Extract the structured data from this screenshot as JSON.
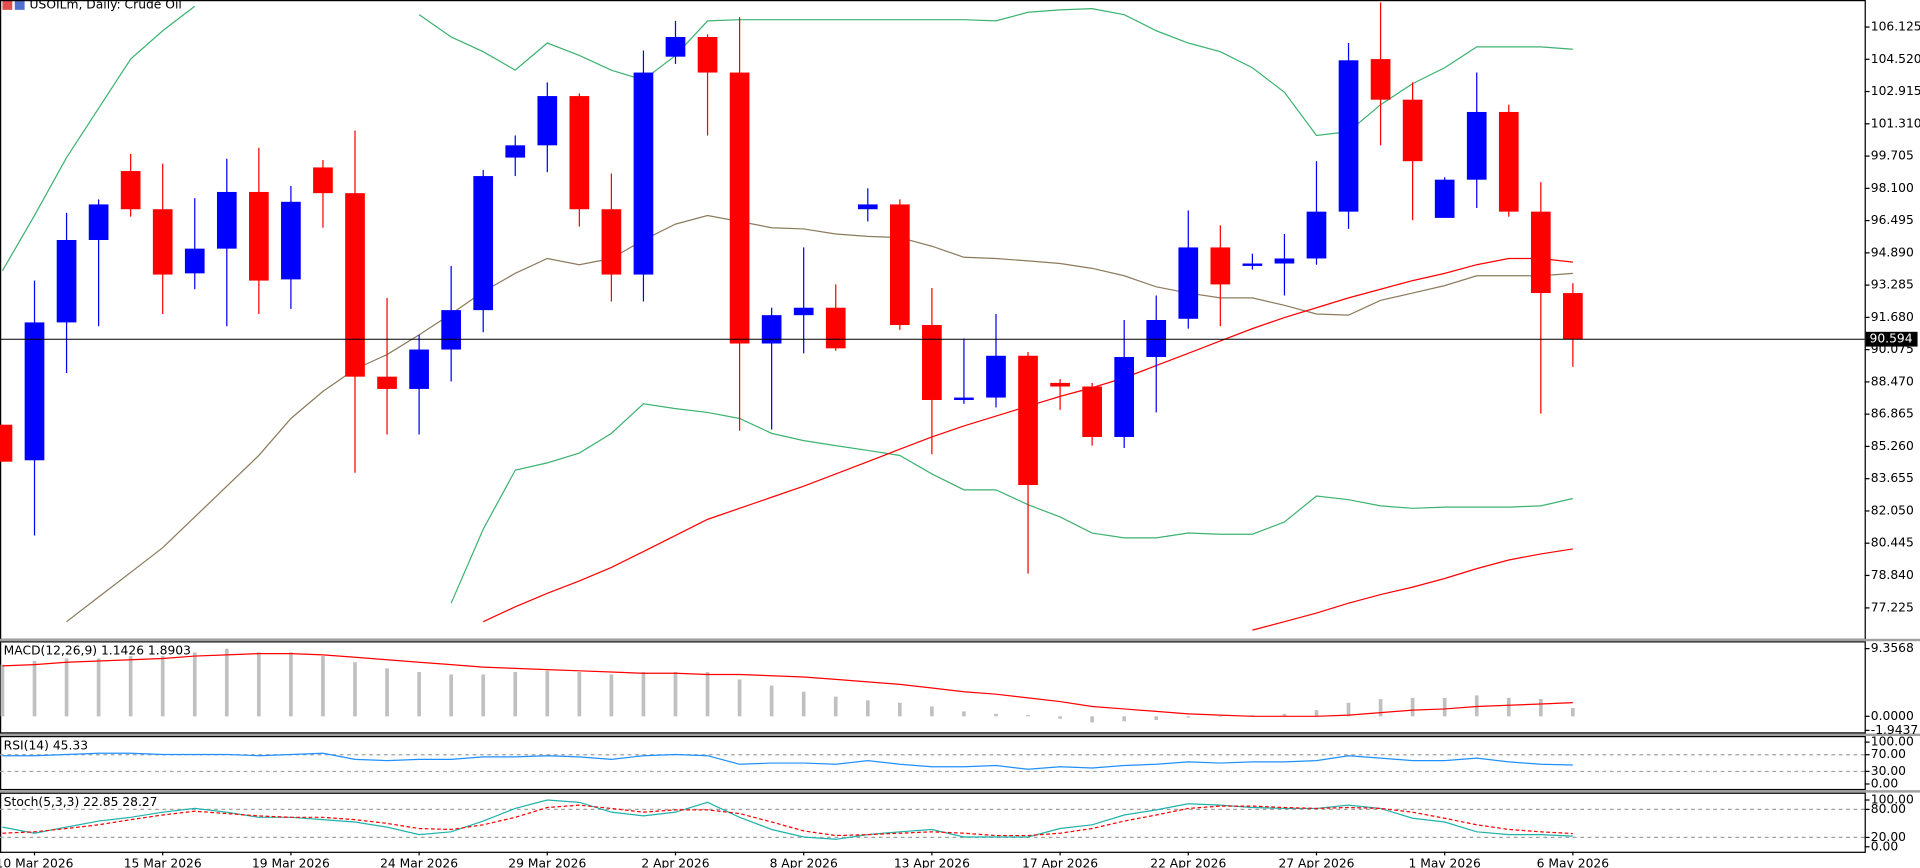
{
  "chart_data": [
    {
      "type": "candlestick",
      "title": "USOILm, Daily:  Crude Oil",
      "categories": [
        null,
        "10 Mar 2026",
        null,
        null,
        null,
        "15 Mar 2026",
        null,
        null,
        null,
        "19 Mar 2026",
        null,
        null,
        null,
        "24 Mar 2026",
        null,
        null,
        null,
        "29 Mar 2026",
        null,
        null,
        null,
        "2 Apr 2026",
        null,
        null,
        null,
        "8 Apr 2026",
        null,
        null,
        null,
        "13 Apr 2026",
        null,
        null,
        null,
        "17 Apr 2026",
        null,
        null,
        null,
        "22 Apr 2026",
        null,
        null,
        null,
        "27 Apr 2026",
        null,
        null,
        null,
        "1 May 2026",
        null,
        null,
        null,
        "6 May 2026"
      ],
      "open": [
        86.34,
        84.57,
        91.43,
        95.53,
        98.96,
        97.06,
        93.87,
        95.1,
        97.92,
        93.57,
        99.14,
        97.86,
        88.73,
        88.12,
        90.08,
        92.04,
        99.63,
        100.24,
        102.69,
        97.06,
        93.81,
        104.65,
        105.63,
        103.86,
        90.38,
        91.79,
        92.16,
        97.06,
        97.3,
        91.3,
        87.57,
        87.69,
        89.77,
        88.42,
        88.24,
        85.73,
        89.71,
        91.61,
        95.16,
        94.24,
        94.36,
        94.61,
        96.94,
        104.53,
        102.51,
        96.63,
        98.53,
        101.9,
        96.94,
        92.89
      ],
      "high": [
        86.34,
        93.51,
        96.88,
        97.55,
        99.81,
        99.33,
        97.61,
        99.57,
        100.12,
        98.22,
        99.51,
        100.98,
        92.65,
        90.81,
        94.24,
        99.02,
        100.73,
        103.37,
        102.82,
        98.84,
        104.96,
        106.43,
        105.76,
        106.61,
        92.16,
        95.16,
        93.32,
        98.1,
        97.55,
        93.14,
        90.63,
        91.85,
        89.96,
        88.61,
        88.42,
        91.55,
        92.77,
        97.0,
        96.26,
        94.85,
        95.83,
        99.45,
        105.33,
        107.35,
        103.37,
        98.65,
        103.86,
        102.26,
        98.41,
        93.38
      ],
      "low": [
        84.5,
        80.83,
        88.91,
        91.24,
        96.69,
        91.85,
        93.08,
        91.24,
        91.85,
        92.1,
        96.14,
        83.95,
        85.85,
        85.85,
        88.49,
        90.94,
        98.71,
        98.9,
        96.2,
        92.47,
        92.47,
        104.29,
        100.73,
        86.04,
        86.1,
        89.89,
        90.02,
        96.45,
        91.06,
        84.87,
        87.38,
        87.2,
        78.93,
        87.08,
        85.3,
        85.18,
        86.95,
        91.12,
        91.24,
        94.06,
        92.77,
        94.3,
        96.08,
        100.24,
        96.51,
        96.63,
        97.12,
        96.69,
        86.89,
        89.22
      ],
      "close": [
        84.5,
        91.43,
        95.53,
        97.3,
        97.06,
        93.81,
        95.1,
        97.92,
        93.51,
        97.43,
        97.86,
        88.73,
        88.12,
        90.08,
        92.04,
        98.71,
        100.24,
        102.69,
        97.06,
        93.81,
        103.86,
        105.63,
        103.86,
        90.38,
        91.79,
        92.16,
        90.14,
        97.3,
        91.3,
        87.57,
        87.69,
        89.77,
        83.34,
        88.24,
        85.73,
        89.71,
        91.55,
        95.16,
        93.32,
        94.36,
        94.61,
        96.94,
        104.47,
        102.51,
        99.45,
        98.53,
        101.9,
        96.94,
        92.89,
        90.59
      ],
      "up_color": "#0000ff",
      "down_color": "#ff0000",
      "series": [
        {
          "color": "#3cb371",
          "values": [
            94.0,
            96.75,
            99.63,
            102.08,
            104.53,
            105.94,
            107.16,
            null,
            null,
            null,
            null,
            null,
            null,
            106.74,
            105.63,
            104.9,
            103.98,
            105.33,
            104.71,
            103.98,
            103.49,
            104.71,
            106.43,
            106.49,
            106.49,
            106.49,
            106.49,
            106.49,
            106.49,
            106.49,
            106.49,
            106.43,
            106.86,
            106.98,
            107.04,
            106.74,
            105.94,
            105.33,
            104.9,
            104.1,
            102.88,
            100.73,
            100.92,
            102.26,
            103.31,
            104.1,
            105.14,
            105.14,
            105.14,
            105.02
          ]
        },
        {
          "color": "#3cb371",
          "values": [
            null,
            null,
            null,
            null,
            null,
            null,
            null,
            null,
            null,
            null,
            null,
            null,
            null,
            null,
            77.46,
            81.14,
            84.08,
            84.44,
            84.93,
            85.91,
            87.38,
            87.14,
            86.95,
            86.65,
            85.91,
            85.55,
            85.3,
            85.06,
            84.81,
            83.89,
            83.1,
            83.1,
            82.36,
            81.75,
            80.95,
            80.71,
            80.71,
            80.95,
            80.89,
            80.89,
            81.5,
            82.79,
            82.61,
            82.3,
            82.18,
            82.24,
            82.24,
            82.24,
            82.3,
            82.67
          ]
        },
        {
          "color": "#8b7b5c",
          "values": [
            null,
            null,
            76.54,
            77.77,
            78.99,
            80.22,
            81.75,
            83.28,
            84.81,
            86.65,
            88.0,
            89.1,
            89.83,
            90.81,
            91.85,
            92.96,
            93.87,
            94.61,
            94.3,
            94.61,
            95.53,
            96.32,
            96.75,
            96.45,
            96.14,
            96.08,
            95.83,
            95.71,
            95.65,
            95.22,
            94.67,
            94.61,
            94.49,
            94.36,
            94.12,
            93.75,
            93.2,
            92.89,
            92.65,
            92.65,
            92.28,
            91.85,
            91.79,
            92.53,
            92.89,
            93.26,
            93.75,
            93.75,
            93.75,
            93.87
          ]
        },
        {
          "color": "#ff0000",
          "values": [
            null,
            null,
            null,
            null,
            null,
            null,
            null,
            null,
            null,
            null,
            null,
            null,
            null,
            null,
            null,
            76.54,
            77.28,
            77.95,
            78.57,
            79.24,
            80.03,
            80.83,
            81.63,
            82.18,
            82.73,
            83.28,
            83.89,
            84.5,
            85.12,
            85.73,
            86.28,
            86.77,
            87.26,
            87.75,
            88.18,
            88.67,
            89.28,
            89.89,
            90.51,
            91.12,
            91.67,
            92.16,
            92.65,
            93.08,
            93.51,
            93.87,
            94.3,
            94.61,
            94.61,
            94.43
          ]
        },
        {
          "color": "#ff0000",
          "values": [
            null,
            null,
            null,
            null,
            null,
            null,
            null,
            null,
            null,
            null,
            null,
            null,
            null,
            null,
            null,
            null,
            null,
            null,
            null,
            null,
            null,
            null,
            null,
            null,
            null,
            null,
            null,
            null,
            null,
            null,
            null,
            null,
            null,
            null,
            null,
            null,
            null,
            null,
            null,
            76.12,
            76.54,
            76.97,
            77.46,
            77.89,
            78.26,
            78.69,
            79.18,
            79.61,
            79.91,
            80.16
          ]
        }
      ],
      "last_price": 90.594,
      "ylim": [
        75.69,
        107.47
      ],
      "yticks": [
        106.125,
        {
          "value": 104.52,
          "label": "104.520"
        },
        102.915,
        {
          "value": 101.31,
          "label": "101.310"
        },
        99.705,
        {
          "value": 98.1,
          "label": "98.100"
        },
        96.495,
        {
          "value": 94.89,
          "label": "94.890"
        },
        93.285,
        {
          "value": 91.68,
          "label": "91.680"
        },
        90.075,
        {
          "value": 88.47,
          "label": "88.470"
        },
        86.865,
        {
          "value": 85.26,
          "label": "85.260"
        },
        83.655,
        {
          "value": 82.05,
          "label": "82.050"
        },
        80.445,
        {
          "value": 78.84,
          "label": "78.840"
        },
        77.225
      ],
      "grid": false
    },
    {
      "type": "bar",
      "title": "MACD(12,26,9) 1.1426 1.8903",
      "color": "#c0c0c0",
      "values": [
        7.14,
        7.65,
        7.99,
        7.99,
        8.33,
        8.33,
        8.84,
        9.35,
        8.84,
        8.84,
        8.33,
        7.48,
        6.63,
        6.12,
        5.78,
        5.78,
        6.12,
        6.29,
        6.12,
        5.78,
        6.12,
        6.12,
        6.12,
        5.1,
        4.25,
        3.4,
        2.72,
        2.21,
        1.87,
        1.36,
        0.68,
        0.34,
        0.17,
        -0.34,
        -0.85,
        -0.68,
        -0.51,
        -0.17,
        -0.05,
        0.17,
        0.34,
        0.85,
        1.87,
        2.38,
        2.55,
        2.55,
        2.89,
        2.55,
        2.38,
        1.14
      ],
      "series": [
        {
          "color": "#ff0000",
          "values": [
            6.97,
            7.14,
            7.48,
            7.65,
            7.82,
            7.99,
            8.33,
            8.5,
            8.67,
            8.67,
            8.5,
            8.16,
            7.82,
            7.48,
            7.14,
            6.8,
            6.63,
            6.46,
            6.29,
            6.12,
            5.95,
            5.95,
            5.78,
            5.78,
            5.61,
            5.44,
            5.1,
            4.76,
            4.42,
            3.91,
            3.4,
            3.06,
            2.55,
            2.04,
            1.36,
            1.02,
            0.68,
            0.34,
            0.17,
            0,
            0,
            0,
            0.17,
            0.51,
            0.85,
            1.02,
            1.36,
            1.53,
            1.7,
            1.89
          ]
        }
      ],
      "ylim": [
        -2.21,
        10.38
      ],
      "yticks": [
        9.3568,
        {
          "value": 0,
          "label": "0.0000"
        },
        -1.9437
      ],
      "grid": false
    },
    {
      "type": "line",
      "title": "RSI(14) 45.33",
      "series": [
        {
          "color": "#1e90ff",
          "values": [
            67.6,
            67.6,
            70.6,
            73.5,
            73.5,
            70.6,
            70.6,
            70.6,
            67.6,
            70.6,
            73.5,
            58.8,
            55.9,
            58.8,
            58.8,
            64.7,
            64.7,
            67.6,
            64.7,
            58.8,
            67.6,
            70.6,
            67.6,
            47.1,
            50,
            50,
            47.1,
            55.9,
            47.1,
            41.2,
            41.2,
            44.1,
            35.3,
            41.2,
            38.2,
            44.1,
            47.1,
            52.9,
            50,
            52.9,
            52.9,
            55.9,
            67.6,
            61.8,
            55.9,
            55.9,
            61.8,
            52.9,
            47.1,
            45.33
          ]
        }
      ],
      "ylim": [
        -11.8,
        114.7
      ],
      "yticks": [
        {
          "value": 100,
          "label": "100.00"
        },
        {
          "value": 70,
          "label": "70.00"
        },
        {
          "value": 30,
          "label": "30.00"
        },
        {
          "value": 0,
          "label": "0.00"
        }
      ],
      "grid": true
    },
    {
      "type": "line",
      "title": "Stoch(5,3,3) 22.85 28.27",
      "series": [
        {
          "color": "#20b2aa",
          "values": [
            42,
            29,
            42,
            55,
            63,
            74,
            82,
            74,
            63,
            63,
            58,
            53,
            42,
            26,
            32,
            55,
            82,
            100,
            95,
            74,
            66,
            74,
            95,
            63,
            37,
            21,
            16,
            26,
            32,
            37,
            21,
            21,
            21,
            39,
            47,
            68,
            79,
            92,
            89,
            84,
            82,
            82,
            89,
            82,
            61,
            53,
            32,
            26,
            26,
            22.85
          ]
        },
        {
          "color": "#ff0000",
          "dashed": true,
          "values": [
            29,
            32,
            39,
            47,
            58,
            68,
            76,
            71,
            66,
            63,
            63,
            58,
            50,
            39,
            37,
            47,
            63,
            84,
            89,
            82,
            74,
            79,
            79,
            71,
            53,
            34,
            24,
            26,
            29,
            32,
            29,
            24,
            24,
            29,
            39,
            55,
            68,
            82,
            87,
            87,
            84,
            82,
            84,
            82,
            74,
            61,
            47,
            37,
            32,
            28.27
          ]
        }
      ],
      "ylim": [
        -10.5,
        115.8
      ],
      "yticks": [
        {
          "value": 100,
          "label": "100.00"
        },
        {
          "value": 80,
          "label": "80.00"
        },
        {
          "value": 20,
          "label": "20.00"
        },
        {
          "value": 0,
          "label": "0.00"
        }
      ],
      "grid": true
    }
  ]
}
